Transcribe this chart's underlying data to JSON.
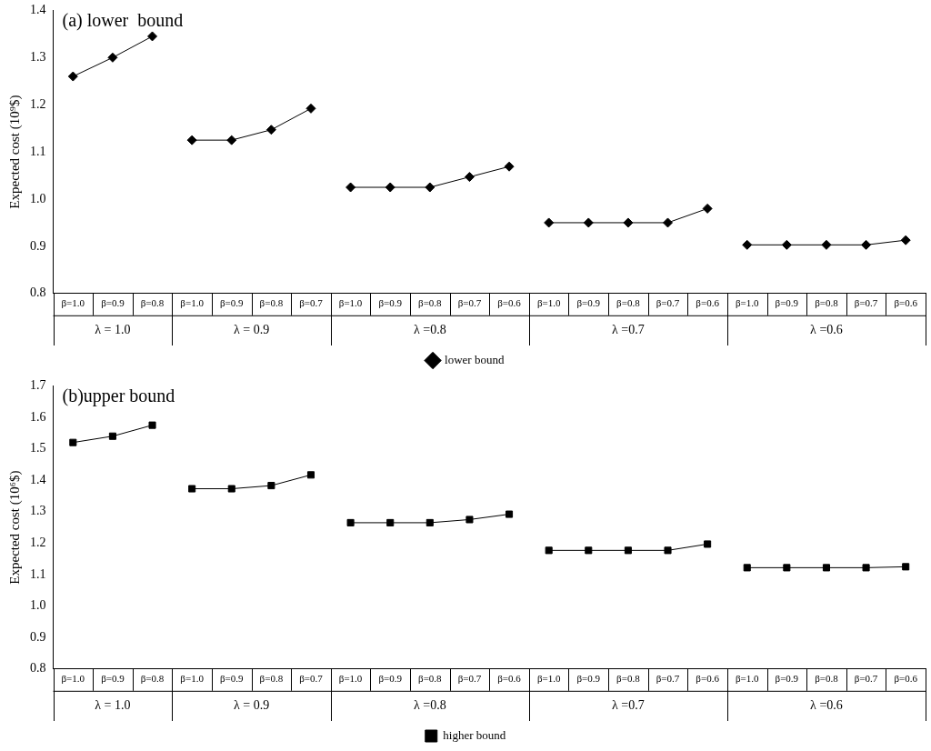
{
  "chart_data": [
    {
      "type": "line",
      "title": "(a) lower  bound",
      "ylabel": "Expected cost (10⁹$)",
      "categories": [
        "β=1.0",
        "β=0.9",
        "β=0.8",
        "β=1.0",
        "β=0.9",
        "β=0.8",
        "β=0.7",
        "β=1.0",
        "β=0.9",
        "β=0.8",
        "β=0.7",
        "β=0.6",
        "β=1.0",
        "β=0.9",
        "β=0.8",
        "β=0.7",
        "β=0.6",
        "β=1.0",
        "β=0.9",
        "β=0.8",
        "β=0.7",
        "β=0.6"
      ],
      "series": [
        {
          "name": "lower bound",
          "color": "#000000",
          "values": [
            1.26,
            1.3,
            1.345,
            null,
            null,
            null,
            null,
            null,
            null,
            null,
            null,
            null,
            null,
            null,
            null,
            null,
            null,
            null,
            null,
            null,
            null,
            null
          ]
        },
        {
          "color": "#000000",
          "values": [
            null,
            null,
            null,
            1.125,
            1.125,
            1.147,
            1.192,
            null,
            null,
            null,
            null,
            null,
            null,
            null,
            null,
            null,
            null,
            null,
            null,
            null,
            null,
            null
          ]
        },
        {
          "color": "#000000",
          "values": [
            null,
            null,
            null,
            null,
            null,
            null,
            null,
            1.025,
            1.025,
            1.025,
            1.047,
            1.069,
            null,
            null,
            null,
            null,
            null,
            null,
            null,
            null,
            null,
            null
          ]
        },
        {
          "color": "#000000",
          "values": [
            null,
            null,
            null,
            null,
            null,
            null,
            null,
            null,
            null,
            null,
            null,
            null,
            0.95,
            0.95,
            0.95,
            0.95,
            0.98,
            null,
            null,
            null,
            null,
            null
          ]
        },
        {
          "color": "#000000",
          "values": [
            null,
            null,
            null,
            null,
            null,
            null,
            null,
            null,
            null,
            null,
            null,
            null,
            null,
            null,
            null,
            null,
            null,
            0.903,
            0.903,
            0.903,
            0.903,
            0.913
          ]
        }
      ],
      "annotations": [
        "λ = 1.0",
        "λ = 0.9",
        "λ =0.8",
        "λ =0.7",
        "λ =0.6"
      ],
      "ylim": [
        0.8,
        1.4
      ],
      "yticks": [
        0.8,
        0.9,
        {
          "value": 1,
          "label": "1.0"
        },
        1.1,
        1.2,
        1.3,
        1.4
      ],
      "grid": false,
      "legend": "bottom",
      "marker": "diamond",
      "line_style": "solid"
    },
    {
      "type": "line",
      "title": "(b)upper bound",
      "ylabel": "Expected cost (10⁶$)",
      "categories": [
        "β=1.0",
        "β=0.9",
        "β=0.8",
        "β=1.0",
        "β=0.9",
        "β=0.8",
        "β=0.7",
        "β=1.0",
        "β=0.9",
        "β=0.8",
        "β=0.7",
        "β=0.6",
        "β=1.0",
        "β=0.9",
        "β=0.8",
        "β=0.7",
        "β=0.6",
        "β=1.0",
        "β=0.9",
        "β=0.8",
        "β=0.7",
        "β=0.6"
      ],
      "series": [
        {
          "name": "higher bound",
          "color": "#000000",
          "values": [
            1.52,
            1.54,
            1.575,
            null,
            null,
            null,
            null,
            null,
            null,
            null,
            null,
            null,
            null,
            null,
            null,
            null,
            null,
            null,
            null,
            null,
            null,
            null
          ]
        },
        {
          "color": "#000000",
          "values": [
            null,
            null,
            null,
            1.373,
            1.373,
            1.383,
            1.417,
            null,
            null,
            null,
            null,
            null,
            null,
            null,
            null,
            null,
            null,
            null,
            null,
            null,
            null,
            null
          ]
        },
        {
          "color": "#000000",
          "values": [
            null,
            null,
            null,
            null,
            null,
            null,
            null,
            1.265,
            1.265,
            1.265,
            1.275,
            1.292,
            null,
            null,
            null,
            null,
            null,
            null,
            null,
            null,
            null,
            null
          ]
        },
        {
          "color": "#000000",
          "values": [
            null,
            null,
            null,
            null,
            null,
            null,
            null,
            null,
            null,
            null,
            null,
            null,
            1.177,
            1.177,
            1.177,
            1.177,
            1.197,
            null,
            null,
            null,
            null,
            null
          ]
        },
        {
          "color": "#000000",
          "values": [
            null,
            null,
            null,
            null,
            null,
            null,
            null,
            null,
            null,
            null,
            null,
            null,
            null,
            null,
            null,
            null,
            null,
            1.122,
            1.122,
            1.122,
            1.122,
            1.125
          ]
        }
      ],
      "annotations": [
        "λ = 1.0",
        "λ = 0.9",
        "λ =0.8",
        "λ =0.7",
        "λ =0.6"
      ],
      "ylim": [
        0.8,
        1.7
      ],
      "yticks": [
        0.8,
        0.9,
        {
          "value": 1,
          "label": "1.0"
        },
        1.1,
        1.2,
        1.3,
        1.4,
        1.5,
        1.6,
        1.7
      ],
      "grid": false,
      "legend": "bottom",
      "marker": "square",
      "line_style": "solid"
    }
  ]
}
